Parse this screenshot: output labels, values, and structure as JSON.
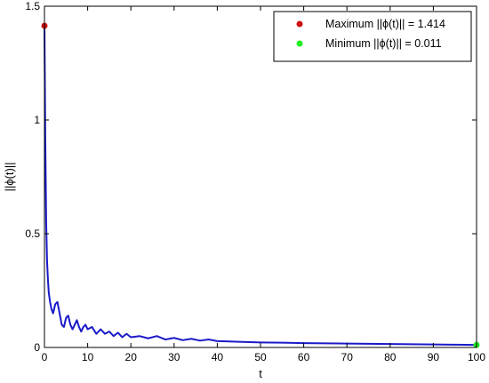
{
  "chart_data": {
    "type": "line",
    "xlabel": "t",
    "ylabel": "||ϕ(t)||",
    "xlim": [
      0,
      100
    ],
    "ylim": [
      0,
      1.5
    ],
    "xticks": [
      0,
      10,
      20,
      30,
      40,
      50,
      60,
      70,
      80,
      90,
      100
    ],
    "yticks": [
      0,
      0.5,
      1,
      1.5
    ],
    "xtick_labels": [
      "0",
      "10",
      "20",
      "30",
      "40",
      "50",
      "60",
      "70",
      "80",
      "90",
      "100"
    ],
    "ytick_labels": [
      "0",
      "0.5",
      "1",
      "1.5"
    ],
    "grid": false,
    "legend_position": "top-right",
    "series": [
      {
        "color": "#1a1ac8",
        "x": [
          0,
          0.2,
          0.4,
          0.6,
          0.8,
          1.0,
          1.3,
          1.6,
          2.0,
          2.5,
          3.0,
          3.5,
          4.0,
          4.5,
          5.0,
          5.5,
          6.0,
          6.5,
          7.0,
          7.5,
          8.0,
          8.5,
          9.0,
          9.5,
          10.0,
          11,
          12,
          13,
          14,
          15,
          16,
          17,
          18,
          19,
          20,
          22,
          24,
          26,
          28,
          30,
          32,
          34,
          36,
          38,
          40,
          45,
          50,
          55,
          60,
          65,
          70,
          75,
          80,
          85,
          90,
          95,
          100
        ],
        "y": [
          1.414,
          0.9,
          0.55,
          0.38,
          0.3,
          0.24,
          0.2,
          0.17,
          0.15,
          0.19,
          0.2,
          0.15,
          0.1,
          0.09,
          0.13,
          0.14,
          0.1,
          0.08,
          0.1,
          0.12,
          0.09,
          0.07,
          0.09,
          0.1,
          0.08,
          0.09,
          0.06,
          0.08,
          0.06,
          0.07,
          0.05,
          0.065,
          0.045,
          0.06,
          0.045,
          0.05,
          0.04,
          0.05,
          0.035,
          0.042,
          0.032,
          0.038,
          0.03,
          0.035,
          0.028,
          0.025,
          0.022,
          0.021,
          0.019,
          0.018,
          0.017,
          0.016,
          0.015,
          0.014,
          0.013,
          0.012,
          0.011
        ]
      }
    ],
    "markers": [
      {
        "label": "Maximum ||ϕ(t)|| = 1.414",
        "x": 0,
        "y": 1.414,
        "color": "#cc1111"
      },
      {
        "label": "Minimum ||ϕ(t)|| = 0.011",
        "x": 100,
        "y": 0.011,
        "color": "#22ee22"
      }
    ]
  }
}
